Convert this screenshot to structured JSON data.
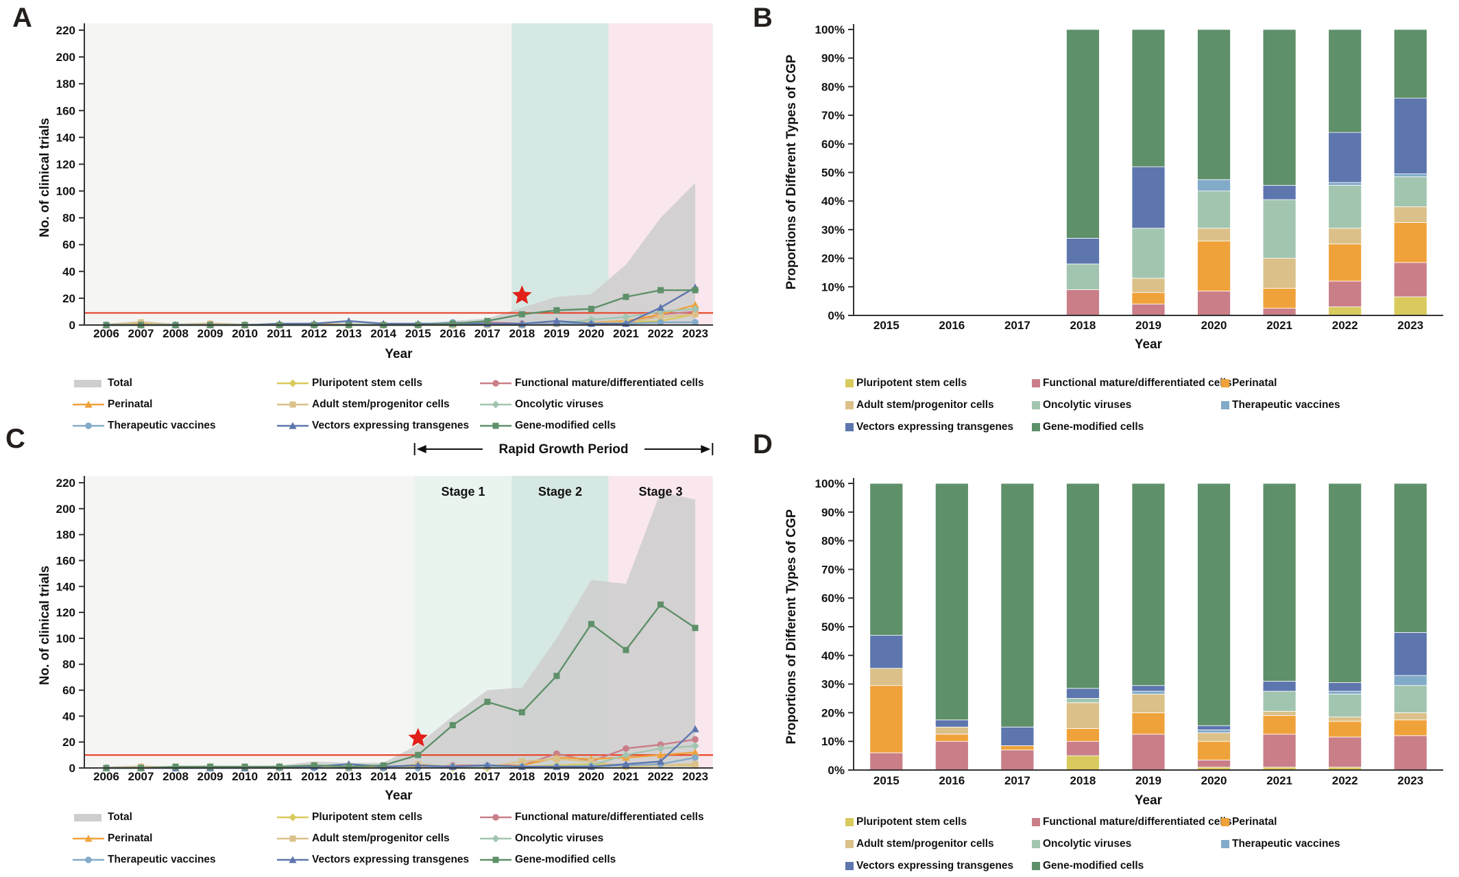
{
  "colors": {
    "plot_bg": "#f5f5f3",
    "total": "#cecece",
    "red_line": "#e8492f",
    "star": "#e02019",
    "region_mint": "#eaf4ef",
    "region_teal": "#d6e8e3",
    "region_pink": "#f9e7ed",
    "axis": "#333333",
    "text": "#111111"
  },
  "series_meta": [
    {
      "key": "pluripotent",
      "name": "Pluripotent stem cells",
      "color": "#d8ca5c",
      "marker": "diamond"
    },
    {
      "key": "functional",
      "name": "Functional mature/differentiated cells",
      "color": "#c97e88",
      "marker": "circle"
    },
    {
      "key": "perinatal",
      "name": "Perinatal",
      "color": "#f0a23a",
      "marker": "triangle"
    },
    {
      "key": "adult",
      "name": "Adult stem/progenitor cells",
      "color": "#dbc189",
      "marker": "square"
    },
    {
      "key": "oncolytic",
      "name": "Oncolytic viruses",
      "color": "#a2c5b0",
      "marker": "diamond"
    },
    {
      "key": "therapeutic",
      "name": "Therapeutic vaccines",
      "color": "#82aac9",
      "marker": "circle"
    },
    {
      "key": "vectors",
      "name": "Vectors expressing transgenes",
      "color": "#5d76ae",
      "marker": "triangle"
    },
    {
      "key": "gene",
      "name": "Gene-modified cells",
      "color": "#5e9069",
      "marker": "square"
    }
  ],
  "total_name": "Total",
  "legend_line_order": [
    "total",
    "pluripotent",
    "functional",
    "perinatal",
    "adult",
    "oncolytic",
    "therapeutic",
    "vectors",
    "gene"
  ],
  "legend_bar_order": [
    "pluripotent",
    "functional",
    "perinatal",
    "adult",
    "oncolytic",
    "therapeutic",
    "vectors",
    "gene"
  ],
  "chart_data": [
    {
      "id": "A",
      "panel_label": "A",
      "type": "line",
      "title": "",
      "ylabel": "No. of clinical trials",
      "xlabel": "Year",
      "ylim": [
        0,
        220
      ],
      "ytick_step": 20,
      "grid": false,
      "years": [
        2006,
        2007,
        2008,
        2009,
        2010,
        2011,
        2012,
        2013,
        2014,
        2015,
        2016,
        2017,
        2018,
        2019,
        2020,
        2021,
        2022,
        2023
      ],
      "total": [
        1,
        3,
        1,
        2,
        1,
        1,
        2,
        3,
        1,
        1,
        3,
        5,
        13,
        21,
        23,
        45,
        80,
        106
      ],
      "series": {
        "pluripotent": [
          0,
          0,
          0,
          0,
          0,
          0,
          0,
          0,
          0,
          0,
          0,
          0,
          0,
          1,
          1,
          2,
          3,
          8
        ],
        "functional": [
          0,
          1,
          0,
          0,
          0,
          0,
          0,
          0,
          0,
          0,
          1,
          2,
          1,
          1,
          2,
          1,
          8,
          10
        ],
        "perinatal": [
          0,
          1,
          0,
          1,
          0,
          0,
          1,
          0,
          0,
          0,
          0,
          1,
          0,
          1,
          2,
          3,
          8,
          15
        ],
        "adult": [
          0,
          2,
          0,
          1,
          0,
          0,
          0,
          0,
          0,
          0,
          0,
          0,
          0,
          1,
          2,
          2,
          6,
          8
        ],
        "oncolytic": [
          0,
          0,
          0,
          0,
          0,
          0,
          0,
          0,
          0,
          0,
          0,
          0,
          0,
          1,
          4,
          6,
          10,
          12
        ],
        "therapeutic": [
          0,
          0,
          0,
          0,
          0,
          0,
          0,
          0,
          0,
          0,
          2,
          1,
          0,
          1,
          1,
          1,
          2,
          2
        ],
        "vectors": [
          0,
          0,
          0,
          0,
          0,
          1,
          1,
          3,
          1,
          1,
          1,
          1,
          1,
          3,
          1,
          1,
          13,
          28
        ],
        "gene": [
          0,
          0,
          0,
          0,
          0,
          0,
          0,
          0,
          0,
          0,
          1,
          3,
          8,
          11,
          12,
          21,
          26,
          26
        ]
      },
      "red_line": 9,
      "star": {
        "year": 2018,
        "value": 22
      },
      "regions": [
        {
          "from": 2017.7,
          "to": 2020.5,
          "color_key": "region_teal"
        },
        {
          "from": 2020.5,
          "to": 2023.5,
          "color_key": "region_pink"
        }
      ]
    },
    {
      "id": "B",
      "panel_label": "B",
      "type": "bar",
      "title": "",
      "ylabel": "Proportions of Different Types of CGP",
      "xlabel": "Year",
      "ylim": [
        0,
        100
      ],
      "ytick_step": 10,
      "unit": "%",
      "grid": false,
      "years": [
        2015,
        2016,
        2017,
        2018,
        2019,
        2020,
        2021,
        2022,
        2023
      ],
      "series": {
        "pluripotent": [
          0,
          0,
          0,
          0,
          0,
          0,
          0,
          3,
          6.5
        ],
        "functional": [
          0,
          0,
          0,
          9,
          4,
          8.5,
          2.5,
          9,
          12
        ],
        "perinatal": [
          0,
          0,
          0,
          0,
          4,
          17.5,
          7,
          13,
          14
        ],
        "adult": [
          0,
          0,
          0,
          0,
          5,
          4.5,
          10.5,
          5.5,
          5.5
        ],
        "oncolytic": [
          0,
          0,
          0,
          9,
          17.5,
          13,
          20.5,
          15,
          10.5
        ],
        "therapeutic": [
          0,
          0,
          0,
          0,
          0,
          4,
          0,
          1,
          1
        ],
        "vectors": [
          0,
          0,
          0,
          9,
          21.5,
          0,
          5,
          17.5,
          26.5
        ],
        "gene": [
          0,
          0,
          0,
          73,
          48,
          52.5,
          54.5,
          36,
          24
        ]
      }
    },
    {
      "id": "C",
      "panel_label": "C",
      "type": "line",
      "title": "",
      "ylabel": "No. of clinical trials",
      "xlabel": "Year",
      "ylim": [
        0,
        220
      ],
      "ytick_step": 20,
      "grid": false,
      "years": [
        2006,
        2007,
        2008,
        2009,
        2010,
        2011,
        2012,
        2013,
        2014,
        2015,
        2016,
        2017,
        2018,
        2019,
        2020,
        2021,
        2022,
        2023
      ],
      "total": [
        1,
        2,
        1,
        2,
        1,
        2,
        5,
        4,
        4,
        18,
        40,
        60,
        62,
        100,
        145,
        142,
        213,
        207
      ],
      "series": {
        "pluripotent": [
          0,
          0,
          0,
          0,
          0,
          0,
          1,
          0,
          0,
          1,
          0,
          0,
          1,
          2,
          3,
          1,
          2,
          2
        ],
        "functional": [
          0,
          0,
          0,
          0,
          0,
          0,
          0,
          0,
          0,
          0,
          2,
          2,
          2,
          11,
          5,
          15,
          18,
          22
        ],
        "perinatal": [
          0,
          1,
          0,
          1,
          0,
          0,
          2,
          0,
          1,
          2,
          1,
          1,
          2,
          8,
          7,
          8,
          10,
          12
        ],
        "adult": [
          0,
          1,
          0,
          1,
          0,
          0,
          1,
          0,
          0,
          3,
          1,
          1,
          5,
          7,
          5,
          1,
          2,
          3
        ],
        "oncolytic": [
          0,
          0,
          0,
          0,
          0,
          0,
          0,
          0,
          0,
          0,
          1,
          1,
          1,
          1,
          2,
          10,
          15,
          17
        ],
        "therapeutic": [
          0,
          0,
          0,
          0,
          0,
          0,
          0,
          0,
          0,
          0,
          1,
          2,
          1,
          1,
          1,
          2,
          3,
          8
        ],
        "vectors": [
          0,
          0,
          0,
          0,
          0,
          1,
          1,
          3,
          1,
          2,
          1,
          2,
          1,
          1,
          1,
          3,
          5,
          30
        ],
        "gene": [
          0,
          0,
          1,
          1,
          1,
          1,
          2,
          1,
          2,
          10,
          33,
          51,
          43,
          71,
          111,
          91,
          126,
          108
        ]
      },
      "red_line": 10,
      "star": {
        "year": 2015,
        "value": 23
      },
      "regions": [
        {
          "from": 2014.9,
          "to": 2017.7,
          "color_key": "region_mint"
        },
        {
          "from": 2017.7,
          "to": 2020.5,
          "color_key": "region_teal"
        },
        {
          "from": 2020.5,
          "to": 2023.5,
          "color_key": "region_pink"
        }
      ],
      "annotation": {
        "title": "Rapid Growth Period",
        "span": [
          2014.9,
          2023.5
        ],
        "stage_labels": [
          "Stage 1",
          "Stage 2",
          "Stage  3"
        ],
        "stage_bounds": [
          2014.9,
          2017.7,
          2020.5,
          2023.5
        ]
      }
    },
    {
      "id": "D",
      "panel_label": "D",
      "type": "bar",
      "title": "",
      "ylabel": "Proportions of Different Types of CGP",
      "xlabel": "Year",
      "ylim": [
        0,
        100
      ],
      "ytick_step": 10,
      "unit": "%",
      "grid": false,
      "years": [
        2015,
        2016,
        2017,
        2018,
        2019,
        2020,
        2021,
        2022,
        2023
      ],
      "series": {
        "pluripotent": [
          0,
          0,
          0,
          5,
          0,
          1,
          1,
          1,
          0
        ],
        "functional": [
          6,
          10,
          7,
          5,
          12.5,
          2.5,
          11.5,
          10.5,
          12
        ],
        "perinatal": [
          23.5,
          2.5,
          1.5,
          4.5,
          7.5,
          6.5,
          6.5,
          5.5,
          5.5
        ],
        "adult": [
          6,
          2.5,
          0,
          9,
          6.5,
          3,
          1.5,
          1.5,
          2.5
        ],
        "oncolytic": [
          0,
          0,
          0,
          1.5,
          0,
          0,
          7,
          8,
          9.5
        ],
        "therapeutic": [
          0,
          0,
          0,
          0,
          1,
          1,
          0,
          1,
          3.5
        ],
        "vectors": [
          11.5,
          2.5,
          6.5,
          3.5,
          2,
          1.5,
          3.5,
          3,
          15
        ],
        "gene": [
          53,
          82.5,
          85,
          71.5,
          70.5,
          84.5,
          69,
          69.5,
          52
        ]
      }
    }
  ]
}
